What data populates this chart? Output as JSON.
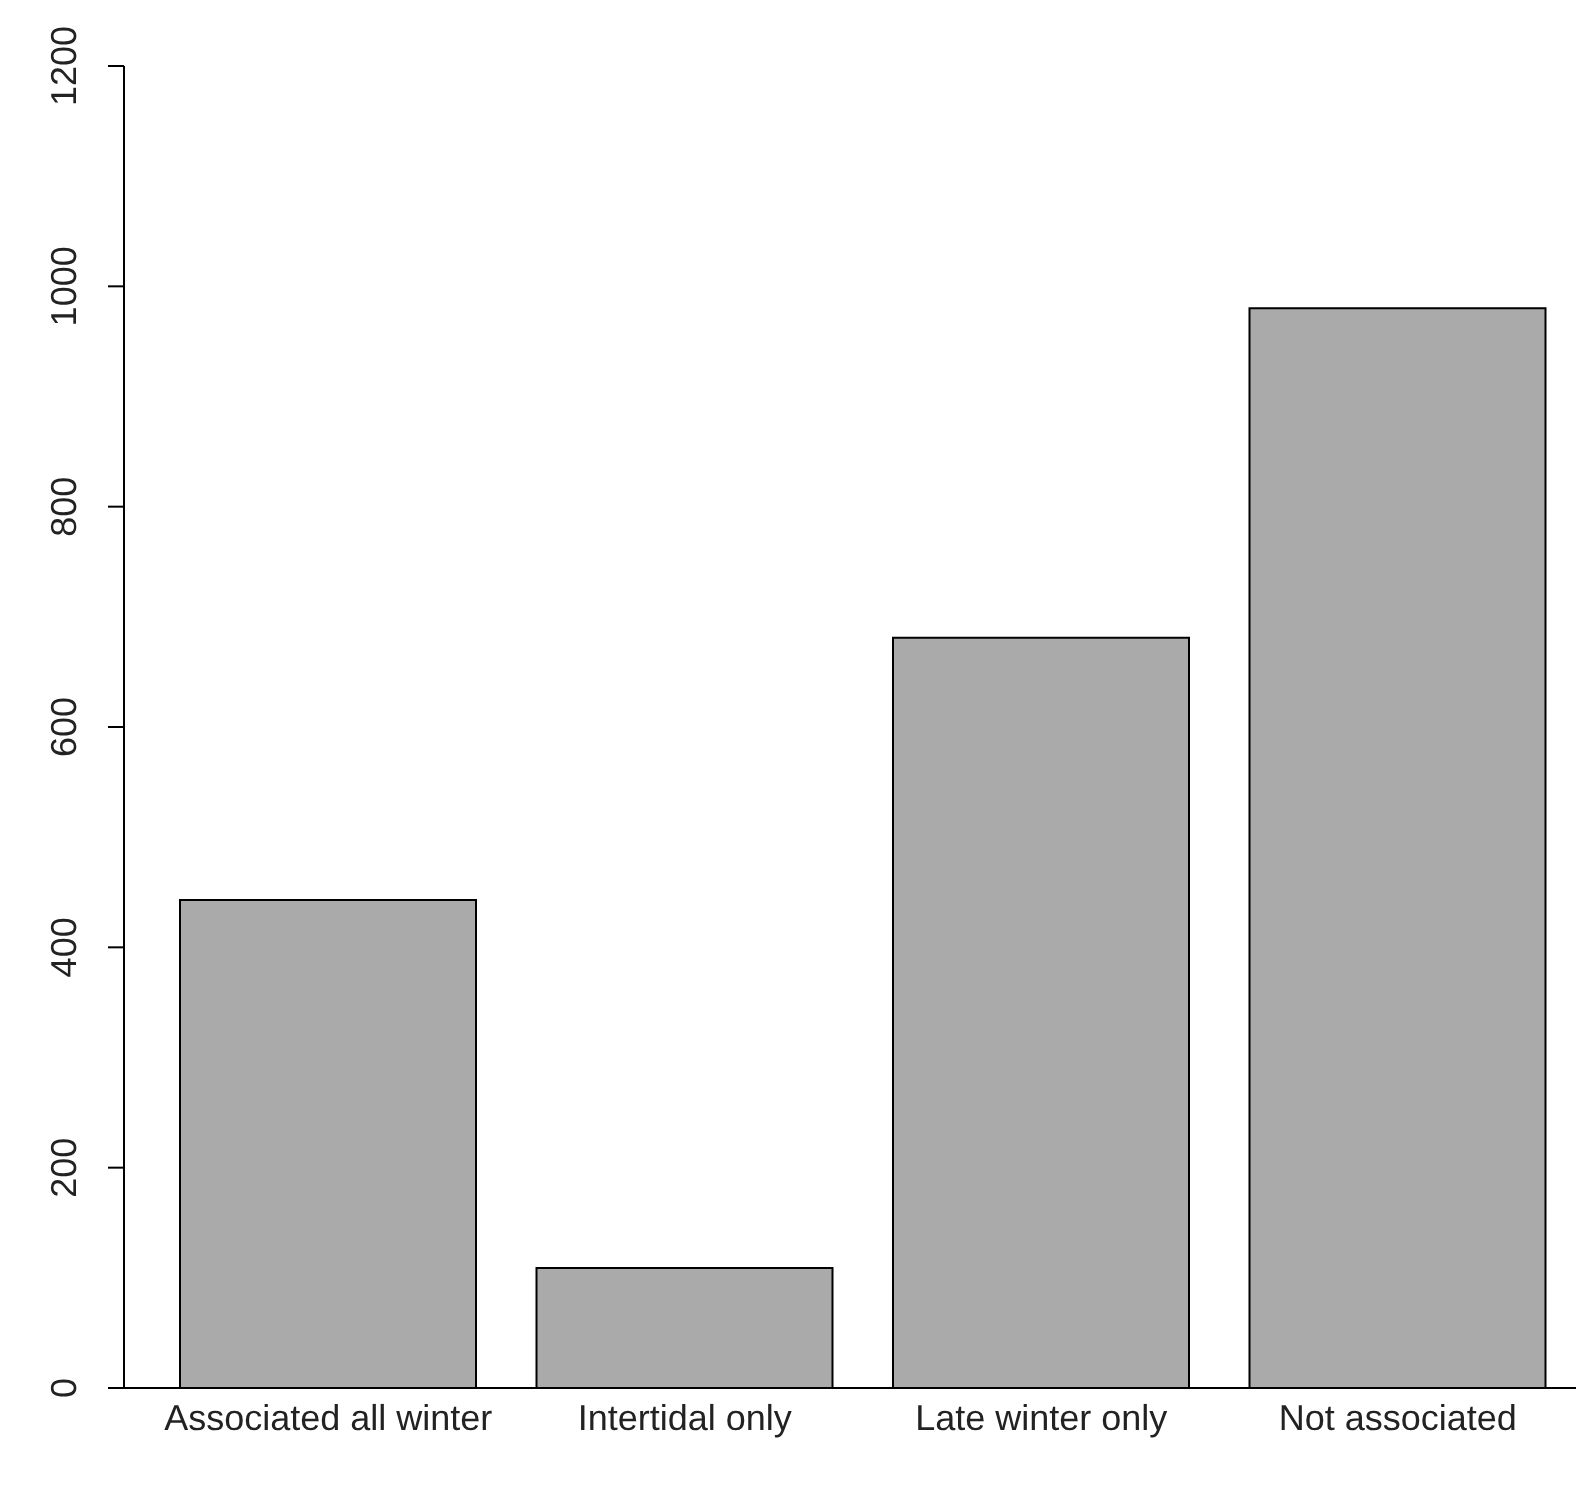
{
  "chart_data": {
    "type": "bar",
    "categories": [
      "Associated all winter",
      "Intertidal only",
      "Late winter only",
      "Not associated"
    ],
    "values": [
      443,
      109,
      681,
      980
    ],
    "color": "#aaaaaa",
    "ylim": [
      0,
      1200
    ],
    "yticks": [
      0,
      200,
      400,
      600,
      800,
      1000,
      1200
    ],
    "grid": false
  }
}
